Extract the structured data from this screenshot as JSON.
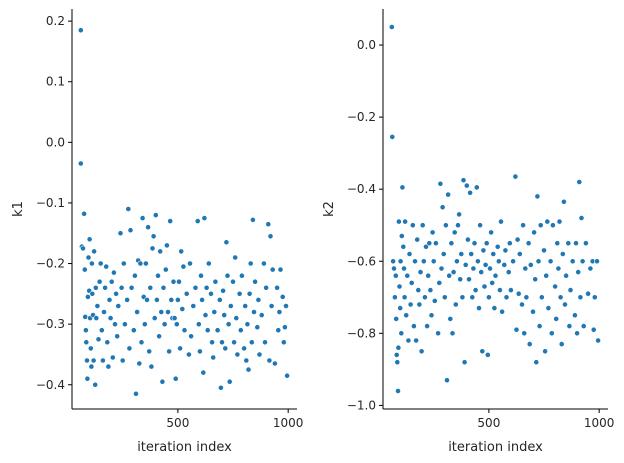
{
  "chart_data": [
    {
      "type": "scatter",
      "xlabel": "iteration index",
      "ylabel": "k1",
      "xlim": [
        20,
        1040
      ],
      "ylim": [
        -0.44,
        0.22
      ],
      "xticks": [
        500,
        1000
      ],
      "xtick_labels": [
        "500",
        "1000"
      ],
      "yticks": [
        0.2,
        0.1,
        0.0,
        -0.1,
        -0.2,
        -0.3,
        -0.4
      ],
      "ytick_labels": [
        "0.2",
        "0.1",
        "0.0",
        "−0.1",
        "−0.2",
        "−0.3",
        "−0.4"
      ],
      "grid": false,
      "color": "#1f77b4",
      "points": [
        [
          60,
          0.185
        ],
        [
          60,
          -0.035
        ],
        [
          65,
          -0.172
        ],
        [
          70,
          -0.175
        ],
        [
          75,
          -0.118
        ],
        [
          78,
          -0.21
        ],
        [
          80,
          -0.288
        ],
        [
          83,
          -0.31
        ],
        [
          85,
          -0.33
        ],
        [
          88,
          -0.36
        ],
        [
          90,
          -0.39
        ],
        [
          92,
          -0.255
        ],
        [
          95,
          -0.19
        ],
        [
          98,
          -0.245
        ],
        [
          100,
          -0.16
        ],
        [
          102,
          -0.29
        ],
        [
          105,
          -0.34
        ],
        [
          108,
          -0.37
        ],
        [
          110,
          -0.2
        ],
        [
          112,
          -0.25
        ],
        [
          115,
          -0.285
        ],
        [
          118,
          -0.36
        ],
        [
          120,
          -0.18
        ],
        [
          125,
          -0.4
        ],
        [
          128,
          -0.24
        ],
        [
          130,
          -0.29
        ],
        [
          135,
          -0.27
        ],
        [
          140,
          -0.325
        ],
        [
          145,
          -0.23
        ],
        [
          150,
          -0.2
        ],
        [
          155,
          -0.31
        ],
        [
          160,
          -0.36
        ],
        [
          165,
          -0.28
        ],
        [
          170,
          -0.24
        ],
        [
          175,
          -0.205
        ],
        [
          180,
          -0.33
        ],
        [
          185,
          -0.37
        ],
        [
          190,
          -0.26
        ],
        [
          195,
          -0.29
        ],
        [
          200,
          -0.23
        ],
        [
          205,
          -0.355
        ],
        [
          210,
          -0.215
        ],
        [
          215,
          -0.3
        ],
        [
          220,
          -0.25
        ],
        [
          225,
          -0.32
        ],
        [
          230,
          -0.27
        ],
        [
          240,
          -0.15
        ],
        [
          245,
          -0.24
        ],
        [
          250,
          -0.36
        ],
        [
          255,
          -0.2
        ],
        [
          260,
          -0.3
        ],
        [
          270,
          -0.26
        ],
        [
          275,
          -0.11
        ],
        [
          280,
          -0.34
        ],
        [
          285,
          -0.145
        ],
        [
          290,
          -0.24
        ],
        [
          300,
          -0.31
        ],
        [
          305,
          -0.22
        ],
        [
          310,
          -0.415
        ],
        [
          315,
          -0.28
        ],
        [
          320,
          -0.195
        ],
        [
          325,
          -0.365
        ],
        [
          330,
          -0.2
        ],
        [
          335,
          -0.33
        ],
        [
          340,
          -0.125
        ],
        [
          345,
          -0.255
        ],
        [
          350,
          -0.3
        ],
        [
          355,
          -0.2
        ],
        [
          360,
          -0.26
        ],
        [
          365,
          -0.14
        ],
        [
          370,
          -0.345
        ],
        [
          375,
          -0.24
        ],
        [
          380,
          -0.37
        ],
        [
          385,
          -0.175
        ],
        [
          390,
          -0.155
        ],
        [
          395,
          -0.29
        ],
        [
          400,
          -0.12
        ],
        [
          405,
          -0.26
        ],
        [
          410,
          -0.22
        ],
        [
          415,
          -0.32
        ],
        [
          420,
          -0.18
        ],
        [
          425,
          -0.28
        ],
        [
          430,
          -0.395
        ],
        [
          435,
          -0.24
        ],
        [
          440,
          -0.3
        ],
        [
          445,
          -0.21
        ],
        [
          450,
          -0.17
        ],
        [
          455,
          -0.28
        ],
        [
          460,
          -0.345
        ],
        [
          465,
          -0.13
        ],
        [
          470,
          -0.26
        ],
        [
          475,
          -0.29
        ],
        [
          480,
          -0.23
        ],
        [
          485,
          -0.29
        ],
        [
          490,
          -0.39
        ],
        [
          495,
          -0.3
        ],
        [
          500,
          -0.26
        ],
        [
          505,
          -0.23
        ],
        [
          510,
          -0.34
        ],
        [
          515,
          -0.18
        ],
        [
          520,
          -0.275
        ],
        [
          525,
          -0.205
        ],
        [
          530,
          -0.31
        ],
        [
          540,
          -0.25
        ],
        [
          550,
          -0.35
        ],
        [
          555,
          -0.2
        ],
        [
          560,
          -0.32
        ],
        [
          570,
          -0.27
        ],
        [
          580,
          -0.24
        ],
        [
          590,
          -0.13
        ],
        [
          595,
          -0.3
        ],
        [
          600,
          -0.345
        ],
        [
          605,
          -0.22
        ],
        [
          610,
          -0.26
        ],
        [
          615,
          -0.38
        ],
        [
          620,
          -0.125
        ],
        [
          625,
          -0.285
        ],
        [
          630,
          -0.24
        ],
        [
          635,
          -0.31
        ],
        [
          640,
          -0.2
        ],
        [
          650,
          -0.25
        ],
        [
          655,
          -0.33
        ],
        [
          660,
          -0.355
        ],
        [
          665,
          -0.28
        ],
        [
          670,
          -0.23
        ],
        [
          680,
          -0.31
        ],
        [
          690,
          -0.26
        ],
        [
          695,
          -0.405
        ],
        [
          700,
          -0.33
        ],
        [
          705,
          -0.245
        ],
        [
          710,
          -0.285
        ],
        [
          715,
          -0.34
        ],
        [
          720,
          -0.165
        ],
        [
          725,
          -0.22
        ],
        [
          730,
          -0.3
        ],
        [
          735,
          -0.395
        ],
        [
          740,
          -0.27
        ],
        [
          750,
          -0.23
        ],
        [
          755,
          -0.33
        ],
        [
          760,
          -0.19
        ],
        [
          765,
          -0.29
        ],
        [
          770,
          -0.35
        ],
        [
          780,
          -0.25
        ],
        [
          785,
          -0.31
        ],
        [
          790,
          -0.22
        ],
        [
          800,
          -0.34
        ],
        [
          805,
          -0.27
        ],
        [
          810,
          -0.36
        ],
        [
          815,
          -0.3
        ],
        [
          820,
          -0.375
        ],
        [
          825,
          -0.25
        ],
        [
          830,
          -0.2
        ],
        [
          835,
          -0.33
        ],
        [
          840,
          -0.128
        ],
        [
          845,
          -0.28
        ],
        [
          850,
          -0.23
        ],
        [
          860,
          -0.305
        ],
        [
          865,
          -0.26
        ],
        [
          870,
          -0.35
        ],
        [
          880,
          -0.285
        ],
        [
          890,
          -0.2
        ],
        [
          895,
          -0.33
        ],
        [
          900,
          -0.24
        ],
        [
          910,
          -0.135
        ],
        [
          915,
          -0.36
        ],
        [
          920,
          -0.155
        ],
        [
          925,
          -0.27
        ],
        [
          930,
          -0.21
        ],
        [
          940,
          -0.365
        ],
        [
          950,
          -0.24
        ],
        [
          955,
          -0.31
        ],
        [
          960,
          -0.28
        ],
        [
          965,
          -0.21
        ],
        [
          975,
          -0.255
        ],
        [
          980,
          -0.33
        ],
        [
          985,
          -0.305
        ],
        [
          990,
          -0.27
        ],
        [
          995,
          -0.385
        ]
      ]
    },
    {
      "type": "scatter",
      "xlabel": "iteration index",
      "ylabel": "k2",
      "xlim": [
        20,
        1040
      ],
      "ylim": [
        -1.01,
        0.1
      ],
      "xticks": [
        500,
        1000
      ],
      "xtick_labels": [
        "500",
        "1000"
      ],
      "yticks": [
        0.0,
        -0.2,
        -0.4,
        -0.6,
        -0.8,
        -1.0
      ],
      "ytick_labels": [
        "0.0",
        "−0.2",
        "−0.4",
        "−0.6",
        "−0.8",
        "−1.0"
      ],
      "grid": false,
      "color": "#1f77b4",
      "points": [
        [
          60,
          0.05
        ],
        [
          62,
          -0.255
        ],
        [
          66,
          -0.6
        ],
        [
          70,
          -0.62
        ],
        [
          74,
          -0.7
        ],
        [
          78,
          -0.64
        ],
        [
          80,
          -0.76
        ],
        [
          82,
          -0.86
        ],
        [
          85,
          -0.88
        ],
        [
          88,
          -0.96
        ],
        [
          90,
          -0.84
        ],
        [
          92,
          -0.49
        ],
        [
          95,
          -0.67
        ],
        [
          98,
          -0.73
        ],
        [
          100,
          -0.6
        ],
        [
          103,
          -0.8
        ],
        [
          105,
          -0.53
        ],
        [
          108,
          -0.395
        ],
        [
          112,
          -0.56
        ],
        [
          115,
          -0.62
        ],
        [
          118,
          -0.7
        ],
        [
          120,
          -0.49
        ],
        [
          125,
          -0.75
        ],
        [
          130,
          -0.64
        ],
        [
          135,
          -0.82
        ],
        [
          140,
          -0.58
        ],
        [
          145,
          -0.72
        ],
        [
          150,
          -0.66
        ],
        [
          155,
          -0.5
        ],
        [
          160,
          -0.78
        ],
        [
          165,
          -0.6
        ],
        [
          170,
          -0.82
        ],
        [
          175,
          -0.54
        ],
        [
          180,
          -0.68
        ],
        [
          185,
          -0.72
        ],
        [
          190,
          -0.63
        ],
        [
          195,
          -0.85
        ],
        [
          200,
          -0.5
        ],
        [
          205,
          -0.6
        ],
        [
          210,
          -0.7
        ],
        [
          215,
          -0.56
        ],
        [
          220,
          -0.78
        ],
        [
          225,
          -0.64
        ],
        [
          230,
          -0.55
        ],
        [
          235,
          -0.68
        ],
        [
          240,
          -0.75
        ],
        [
          245,
          -0.52
        ],
        [
          250,
          -0.6
        ],
        [
          255,
          -0.71
        ],
        [
          260,
          -0.55
        ],
        [
          270,
          -0.8
        ],
        [
          275,
          -0.66
        ],
        [
          280,
          -0.385
        ],
        [
          285,
          -0.62
        ],
        [
          290,
          -0.45
        ],
        [
          295,
          -0.58
        ],
        [
          300,
          -0.7
        ],
        [
          305,
          -0.5
        ],
        [
          310,
          -0.93
        ],
        [
          315,
          -0.415
        ],
        [
          320,
          -0.64
        ],
        [
          325,
          -0.76
        ],
        [
          330,
          -0.55
        ],
        [
          335,
          -0.8
        ],
        [
          340,
          -0.63
        ],
        [
          345,
          -0.52
        ],
        [
          350,
          -0.72
        ],
        [
          355,
          -0.6
        ],
        [
          360,
          -0.5
        ],
        [
          365,
          -0.47
        ],
        [
          370,
          -0.65
        ],
        [
          375,
          -0.58
        ],
        [
          380,
          -0.7
        ],
        [
          385,
          -0.375
        ],
        [
          390,
          -0.88
        ],
        [
          395,
          -0.61
        ],
        [
          400,
          -0.39
        ],
        [
          405,
          -0.54
        ],
        [
          410,
          -0.65
        ],
        [
          415,
          -0.41
        ],
        [
          420,
          -0.58
        ],
        [
          425,
          -0.7
        ],
        [
          430,
          -0.62
        ],
        [
          435,
          -0.55
        ],
        [
          440,
          -0.68
        ],
        [
          445,
          -0.395
        ],
        [
          450,
          -0.6
        ],
        [
          455,
          -0.73
        ],
        [
          460,
          -0.5
        ],
        [
          465,
          -0.63
        ],
        [
          470,
          -0.85
        ],
        [
          475,
          -0.57
        ],
        [
          480,
          -0.67
        ],
        [
          485,
          -0.61
        ],
        [
          490,
          -0.55
        ],
        [
          495,
          -0.86
        ],
        [
          500,
          -0.7
        ],
        [
          505,
          -0.62
        ],
        [
          510,
          -0.52
        ],
        [
          515,
          -0.66
        ],
        [
          520,
          -0.58
        ],
        [
          525,
          -0.73
        ],
        [
          530,
          -0.64
        ],
        [
          540,
          -0.56
        ],
        [
          545,
          -0.6
        ],
        [
          550,
          -0.68
        ],
        [
          555,
          -0.49
        ],
        [
          560,
          -0.74
        ],
        [
          570,
          -0.61
        ],
        [
          575,
          -0.57
        ],
        [
          580,
          -0.7
        ],
        [
          590,
          -0.63
        ],
        [
          595,
          -0.55
        ],
        [
          600,
          -0.68
        ],
        [
          610,
          -0.6
        ],
        [
          620,
          -0.365
        ],
        [
          625,
          -0.79
        ],
        [
          630,
          -0.54
        ],
        [
          635,
          -0.69
        ],
        [
          640,
          -0.58
        ],
        [
          650,
          -0.72
        ],
        [
          655,
          -0.5
        ],
        [
          660,
          -0.8
        ],
        [
          665,
          -0.62
        ],
        [
          670,
          -0.7
        ],
        [
          680,
          -0.55
        ],
        [
          685,
          -0.83
        ],
        [
          690,
          -0.61
        ],
        [
          700,
          -0.74
        ],
        [
          705,
          -0.52
        ],
        [
          710,
          -0.65
        ],
        [
          715,
          -0.88
        ],
        [
          720,
          -0.42
        ],
        [
          725,
          -0.6
        ],
        [
          730,
          -0.78
        ],
        [
          735,
          -0.5
        ],
        [
          740,
          -0.7
        ],
        [
          750,
          -0.57
        ],
        [
          755,
          -0.85
        ],
        [
          760,
          -0.64
        ],
        [
          765,
          -0.49
        ],
        [
          770,
          -0.73
        ],
        [
          780,
          -0.6
        ],
        [
          785,
          -0.8
        ],
        [
          790,
          -0.5
        ],
        [
          800,
          -0.67
        ],
        [
          805,
          -0.76
        ],
        [
          810,
          -0.55
        ],
        [
          815,
          -0.62
        ],
        [
          820,
          -0.49
        ],
        [
          825,
          -0.7
        ],
        [
          830,
          -0.83
        ],
        [
          835,
          -0.58
        ],
        [
          840,
          -0.435
        ],
        [
          845,
          -0.72
        ],
        [
          850,
          -0.64
        ],
        [
          860,
          -0.55
        ],
        [
          865,
          -0.78
        ],
        [
          870,
          -0.68
        ],
        [
          880,
          -0.6
        ],
        [
          890,
          -0.75
        ],
        [
          895,
          -0.55
        ],
        [
          900,
          -0.8
        ],
        [
          905,
          -0.63
        ],
        [
          910,
          -0.38
        ],
        [
          915,
          -0.7
        ],
        [
          920,
          -0.48
        ],
        [
          925,
          -0.6
        ],
        [
          930,
          -0.78
        ],
        [
          940,
          -0.55
        ],
        [
          950,
          -0.69
        ],
        [
          960,
          -0.62
        ],
        [
          970,
          -0.6
        ],
        [
          975,
          -0.79
        ],
        [
          980,
          -0.7
        ],
        [
          990,
          -0.6
        ],
        [
          995,
          -0.82
        ]
      ]
    }
  ]
}
